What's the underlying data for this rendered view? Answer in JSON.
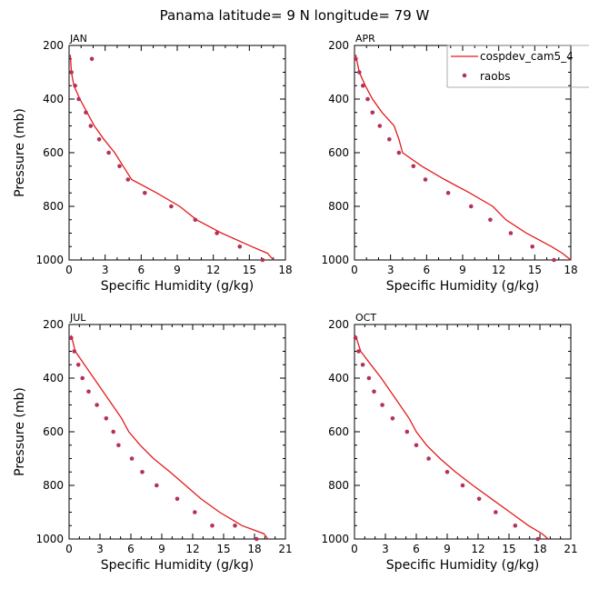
{
  "title": "Panama  latitude= 9 N longitude= 79 W",
  "legend": {
    "items": [
      {
        "label": "cospdev_cam5_4",
        "kind": "line",
        "color": "#e41a1c"
      },
      {
        "label": "raobs",
        "kind": "marker",
        "color": "#b5315a"
      }
    ]
  },
  "chart_data": [
    {
      "type": "line",
      "panel_label": "JAN",
      "xlabel": "Specific Humidity (g/kg)",
      "ylabel": "Pressure (mb)",
      "xlim": [
        0,
        18
      ],
      "xticks": [
        0,
        3,
        6,
        9,
        12,
        15,
        18
      ],
      "ylim": [
        1000,
        200
      ],
      "yticks": [
        200,
        400,
        600,
        800,
        1000
      ],
      "series": [
        {
          "name": "cospdev_cam5_4",
          "kind": "line",
          "points": [
            [
              0.1,
              235
            ],
            [
              0.2,
              300
            ],
            [
              0.4,
              350
            ],
            [
              0.9,
              400
            ],
            [
              1.5,
              450
            ],
            [
              2.1,
              500
            ],
            [
              2.9,
              550
            ],
            [
              3.8,
              600
            ],
            [
              4.5,
              650
            ],
            [
              5.2,
              700
            ],
            [
              7.3,
              750
            ],
            [
              9.2,
              800
            ],
            [
              10.6,
              850
            ],
            [
              12.7,
              900
            ],
            [
              15.2,
              950
            ],
            [
              16.5,
              975
            ],
            [
              17.0,
              1000
            ]
          ]
        },
        {
          "name": "raobs",
          "kind": "marker",
          "points": [
            [
              1.9,
              250
            ],
            [
              0.2,
              300
            ],
            [
              0.5,
              350
            ],
            [
              0.8,
              400
            ],
            [
              1.4,
              450
            ],
            [
              1.8,
              500
            ],
            [
              2.5,
              550
            ],
            [
              3.3,
              600
            ],
            [
              4.2,
              650
            ],
            [
              4.9,
              700
            ],
            [
              6.3,
              750
            ],
            [
              8.5,
              800
            ],
            [
              10.5,
              850
            ],
            [
              12.3,
              900
            ],
            [
              14.2,
              950
            ],
            [
              16.1,
              1000
            ]
          ]
        }
      ]
    },
    {
      "type": "line",
      "panel_label": "APR",
      "xlabel": "Specific Humidity (g/kg)",
      "ylabel": "",
      "xlim": [
        0,
        18
      ],
      "xticks": [
        0,
        3,
        6,
        9,
        12,
        15,
        18
      ],
      "ylim": [
        1000,
        200
      ],
      "yticks": [
        200,
        400,
        600,
        800,
        1000
      ],
      "series": [
        {
          "name": "cospdev_cam5_4",
          "kind": "line",
          "points": [
            [
              0.1,
              235
            ],
            [
              0.4,
              300
            ],
            [
              0.9,
              350
            ],
            [
              1.5,
              400
            ],
            [
              2.3,
              450
            ],
            [
              3.3,
              500
            ],
            [
              3.7,
              550
            ],
            [
              4.0,
              600
            ],
            [
              5.6,
              650
            ],
            [
              7.5,
              700
            ],
            [
              9.6,
              750
            ],
            [
              11.5,
              800
            ],
            [
              12.6,
              850
            ],
            [
              14.3,
              900
            ],
            [
              16.4,
              950
            ],
            [
              17.3,
              975
            ],
            [
              18.0,
              1000
            ]
          ]
        },
        {
          "name": "raobs",
          "kind": "marker",
          "points": [
            [
              0.1,
              250
            ],
            [
              0.4,
              300
            ],
            [
              0.7,
              350
            ],
            [
              1.1,
              400
            ],
            [
              1.5,
              450
            ],
            [
              2.1,
              500
            ],
            [
              2.9,
              550
            ],
            [
              3.7,
              600
            ],
            [
              4.9,
              650
            ],
            [
              5.9,
              700
            ],
            [
              7.8,
              750
            ],
            [
              9.7,
              800
            ],
            [
              11.3,
              850
            ],
            [
              13.0,
              900
            ],
            [
              14.8,
              950
            ],
            [
              16.6,
              1000
            ]
          ]
        }
      ]
    },
    {
      "type": "line",
      "panel_label": "JUL",
      "xlabel": "Specific Humidity (g/kg)",
      "ylabel": "Pressure (mb)",
      "xlim": [
        0,
        21
      ],
      "xticks": [
        0,
        3,
        6,
        9,
        12,
        15,
        18,
        21
      ],
      "ylim": [
        1000,
        200
      ],
      "yticks": [
        200,
        400,
        600,
        800,
        1000
      ],
      "series": [
        {
          "name": "cospdev_cam5_4",
          "kind": "line",
          "points": [
            [
              0.2,
              240
            ],
            [
              0.6,
              300
            ],
            [
              1.5,
              350
            ],
            [
              2.4,
              400
            ],
            [
              3.3,
              450
            ],
            [
              4.2,
              500
            ],
            [
              5.1,
              550
            ],
            [
              5.8,
              600
            ],
            [
              6.9,
              650
            ],
            [
              8.2,
              700
            ],
            [
              9.8,
              750
            ],
            [
              11.3,
              800
            ],
            [
              12.8,
              850
            ],
            [
              14.6,
              900
            ],
            [
              16.8,
              950
            ],
            [
              18.9,
              980
            ],
            [
              19.3,
              1000
            ]
          ]
        },
        {
          "name": "raobs",
          "kind": "marker",
          "points": [
            [
              0.2,
              250
            ],
            [
              0.5,
              300
            ],
            [
              0.9,
              350
            ],
            [
              1.3,
              400
            ],
            [
              1.9,
              450
            ],
            [
              2.7,
              500
            ],
            [
              3.6,
              550
            ],
            [
              4.3,
              600
            ],
            [
              4.8,
              650
            ],
            [
              6.1,
              700
            ],
            [
              7.1,
              750
            ],
            [
              8.5,
              800
            ],
            [
              10.5,
              850
            ],
            [
              12.2,
              900
            ],
            [
              13.9,
              950
            ],
            [
              16.1,
              950
            ],
            [
              18.2,
              1000
            ]
          ]
        }
      ]
    },
    {
      "type": "line",
      "panel_label": "OCT",
      "xlabel": "Specific Humidity (g/kg)",
      "ylabel": "",
      "xlim": [
        0,
        21
      ],
      "xticks": [
        0,
        3,
        6,
        9,
        12,
        15,
        18,
        21
      ],
      "ylim": [
        1000,
        200
      ],
      "yticks": [
        200,
        400,
        600,
        800,
        1000
      ],
      "series": [
        {
          "name": "cospdev_cam5_4",
          "kind": "line",
          "points": [
            [
              0.1,
              240
            ],
            [
              0.6,
              300
            ],
            [
              1.6,
              350
            ],
            [
              2.6,
              400
            ],
            [
              3.5,
              450
            ],
            [
              4.4,
              500
            ],
            [
              5.3,
              550
            ],
            [
              6.0,
              600
            ],
            [
              7.0,
              650
            ],
            [
              8.3,
              700
            ],
            [
              9.8,
              750
            ],
            [
              11.5,
              800
            ],
            [
              13.3,
              850
            ],
            [
              15.1,
              900
            ],
            [
              16.9,
              950
            ],
            [
              18.2,
              980
            ],
            [
              18.8,
              1000
            ]
          ]
        },
        {
          "name": "raobs",
          "kind": "marker",
          "points": [
            [
              0.1,
              250
            ],
            [
              0.4,
              300
            ],
            [
              0.8,
              350
            ],
            [
              1.4,
              400
            ],
            [
              1.9,
              450
            ],
            [
              2.7,
              500
            ],
            [
              3.7,
              550
            ],
            [
              5.1,
              600
            ],
            [
              6.0,
              650
            ],
            [
              7.2,
              700
            ],
            [
              9.0,
              750
            ],
            [
              10.5,
              800
            ],
            [
              12.1,
              850
            ],
            [
              13.7,
              900
            ],
            [
              15.6,
              950
            ],
            [
              17.8,
              1000
            ]
          ]
        }
      ]
    }
  ]
}
